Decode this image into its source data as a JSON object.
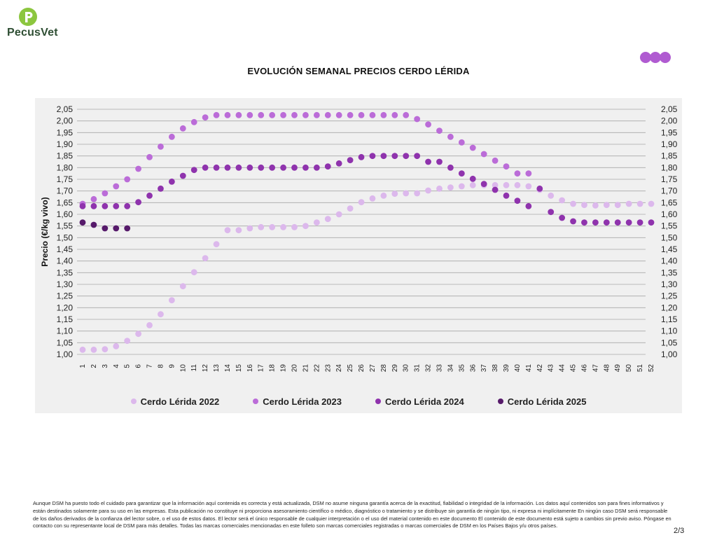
{
  "brand": {
    "name": "PecusVet",
    "logo_color": "#8cc63f",
    "dot_color": "#b05bd1"
  },
  "page": {
    "title": "EVOLUCIÓN SEMANAL PRECIOS CERDO LÉRIDA",
    "page_number": "2/3",
    "disclaimer": "Aunque DSM ha puesto todo el cuidado para garantizar que la información aquí contenida es correcta y está actualizada, DSM no asume ninguna garantía acerca de la exactitud, fiabilidad o integridad de la información. Los datos aquí contenidos son para fines informativos y están destinados solamente para su uso en las empresas. Esta publicación no constituye ni proporciona asesoramiento científico o médico, diagnóstico o tratamiento y se distribuye sin garantía de ningún tipo, ni expresa ni implícitamente En ningún caso DSM será responsable de los daños derivados de la confianza del lector sobre, o el uso de estos datos. El lector será el único responsable de cualquier interpretación o el uso del material contenido en este documento El contenido de este documento está sujeto a cambios sin previo aviso. Póngase en contacto con su representante local de DSM para más detalles. Todas las marcas comerciales mencionadas en este folleto son marcas comerciales registradas o marcas comerciales de DSM en los Países Bajos y/u otros países."
  },
  "chart_data": {
    "type": "scatter",
    "title": "EVOLUCIÓN SEMANAL PRECIOS CERDO LÉRIDA",
    "xlabel": "",
    "ylabel": "Precio (€/kg vivo)",
    "ylim": [
      1.0,
      2.05
    ],
    "y_tick_step": 0.05,
    "grid": true,
    "secondary_y_axis": true,
    "legend_position": "bottom",
    "x": [
      1,
      2,
      3,
      4,
      5,
      6,
      7,
      8,
      9,
      10,
      11,
      12,
      13,
      14,
      15,
      16,
      17,
      18,
      19,
      20,
      21,
      22,
      23,
      24,
      25,
      26,
      27,
      28,
      29,
      30,
      31,
      32,
      33,
      34,
      35,
      36,
      37,
      38,
      39,
      40,
      41,
      42,
      43,
      44,
      45,
      46,
      47,
      48,
      49,
      50,
      51,
      52
    ],
    "series": [
      {
        "name": "Cerdo Lérida 2022",
        "color": "#dcb8ec",
        "values": [
          1.02,
          1.02,
          1.022,
          1.035,
          1.058,
          1.088,
          1.125,
          1.172,
          1.232,
          1.292,
          1.352,
          1.412,
          1.472,
          1.532,
          1.532,
          1.54,
          1.545,
          1.545,
          1.545,
          1.545,
          1.55,
          1.565,
          1.58,
          1.6,
          1.625,
          1.652,
          1.668,
          1.68,
          1.688,
          1.69,
          1.69,
          1.702,
          1.71,
          1.715,
          1.72,
          1.725,
          1.725,
          1.725,
          1.725,
          1.725,
          1.72,
          1.705,
          1.68,
          1.66,
          1.645,
          1.64,
          1.638,
          1.64,
          1.64,
          1.645,
          1.645,
          1.645
        ]
      },
      {
        "name": "Cerdo Lérida 2023",
        "color": "#bb6cd8",
        "values": [
          1.645,
          1.665,
          1.69,
          1.72,
          1.75,
          1.795,
          1.845,
          1.89,
          1.932,
          1.968,
          1.995,
          2.015,
          2.025,
          2.025,
          2.025,
          2.025,
          2.025,
          2.025,
          2.025,
          2.025,
          2.025,
          2.025,
          2.025,
          2.025,
          2.025,
          2.025,
          2.025,
          2.025,
          2.025,
          2.025,
          2.008,
          1.985,
          1.958,
          1.932,
          1.908,
          1.885,
          1.858,
          1.83,
          1.805,
          1.775,
          1.775,
          null,
          null,
          null,
          null,
          null,
          null,
          null,
          null,
          null,
          null,
          null
        ]
      },
      {
        "name": "Cerdo Lérida 2024",
        "color": "#8f33ad",
        "values": [
          1.635,
          1.635,
          1.635,
          1.635,
          1.635,
          1.652,
          1.68,
          1.71,
          1.74,
          1.765,
          1.79,
          1.8,
          1.8,
          1.8,
          1.8,
          1.8,
          1.8,
          1.8,
          1.8,
          1.8,
          1.8,
          1.8,
          1.805,
          1.818,
          1.832,
          1.845,
          1.85,
          1.85,
          1.85,
          1.85,
          1.85,
          1.825,
          1.825,
          1.8,
          1.775,
          1.752,
          1.73,
          1.705,
          1.68,
          1.658,
          1.635,
          1.71,
          1.61,
          1.585,
          1.57,
          1.565,
          1.565,
          1.565,
          1.565,
          1.565,
          1.565,
          1.565
        ]
      },
      {
        "name": "Cerdo Lérida 2025",
        "color": "#561a6a",
        "values": [
          1.565,
          1.555,
          1.54,
          1.54,
          1.54,
          null,
          null,
          null,
          null,
          null,
          null,
          null,
          null,
          null,
          null,
          null,
          null,
          null,
          null,
          null,
          null,
          null,
          null,
          null,
          null,
          null,
          null,
          null,
          null,
          null,
          null,
          null,
          null,
          null,
          null,
          null,
          null,
          null,
          null,
          null,
          null,
          null,
          null,
          null,
          null,
          null,
          null,
          null,
          null,
          null,
          null,
          null
        ]
      }
    ]
  }
}
